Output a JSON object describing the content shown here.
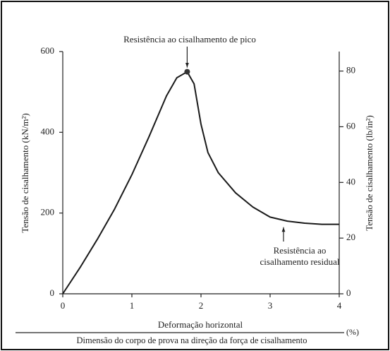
{
  "chart_data": {
    "type": "line",
    "x": [
      0,
      0.25,
      0.5,
      0.75,
      1,
      1.25,
      1.5,
      1.65,
      1.8,
      1.9,
      2,
      2.1,
      2.25,
      2.5,
      2.75,
      3,
      3.25,
      3.5,
      3.75,
      4
    ],
    "series": [
      {
        "color": "#1a1a1a",
        "values": [
          0,
          65,
          135,
          210,
          295,
          390,
          490,
          535,
          550,
          520,
          420,
          350,
          300,
          250,
          215,
          190,
          180,
          175,
          172,
          172
        ]
      }
    ],
    "xlim": [
      0,
      4
    ],
    "xticks": [
      0,
      1,
      2,
      3,
      4
    ],
    "ylim": [
      0,
      600
    ],
    "yticks": [
      0,
      200,
      400,
      600
    ],
    "y2lim": [
      0,
      87
    ],
    "y2ticks": [
      0,
      20,
      40,
      60,
      80
    ],
    "y_label": "Tensão de cisalhamento (kN/m²)",
    "y2_label": "Tensão de cisalhamento (lb/in²)",
    "x_label": "Deformação horizontal",
    "x_label_denominator": "Dimensão do corpo de prova na direção da força de cisalhamento",
    "x_unit": "(%)",
    "annotations": [
      {
        "lines": [
          "Resistência ao cisalhamento de pico"
        ],
        "point": 8
      },
      {
        "lines": [
          "Resistência ao",
          "cisalhamento residual"
        ],
        "point": 15
      }
    ]
  }
}
